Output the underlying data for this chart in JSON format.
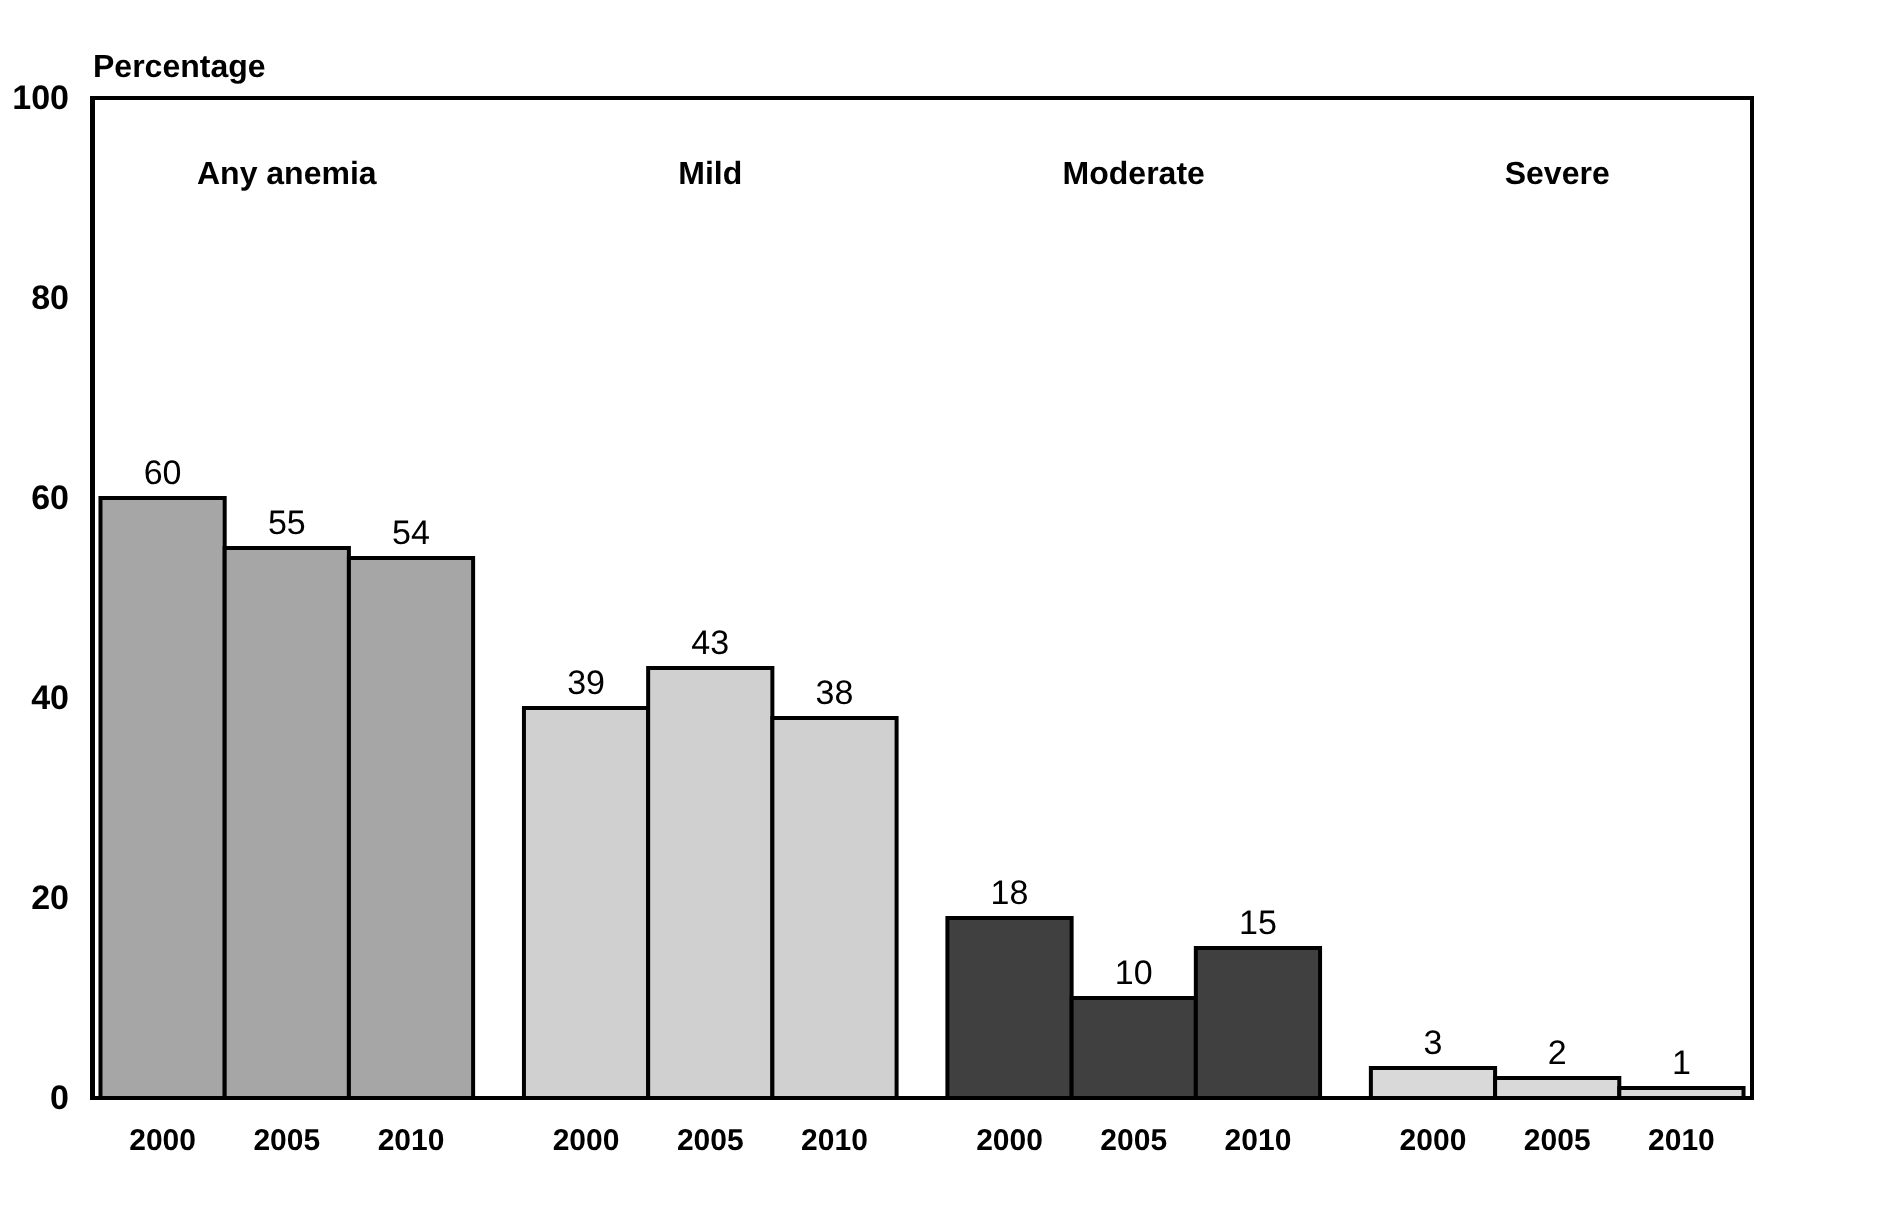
{
  "chart_data": {
    "type": "bar",
    "ylabel": "Percentage",
    "categories": [
      "Any anemia",
      "Mild",
      "Moderate",
      "Severe"
    ],
    "series": [
      {
        "name": "2000",
        "colors": [
          "#a6a6a6",
          "#d0d0d0",
          "#404040",
          "#d9d9d9"
        ],
        "values": [
          60,
          39,
          18,
          3
        ]
      },
      {
        "name": "2005",
        "colors": [
          "#a6a6a6",
          "#d0d0d0",
          "#404040",
          "#d9d9d9"
        ],
        "values": [
          55,
          43,
          10,
          2
        ]
      },
      {
        "name": "2010",
        "colors": [
          "#a6a6a6",
          "#d0d0d0",
          "#404040",
          "#d9d9d9"
        ],
        "values": [
          54,
          38,
          15,
          1
        ]
      }
    ],
    "ylim": [
      0,
      100
    ],
    "yticks": [
      0,
      20,
      40,
      60,
      80,
      100
    ],
    "grid": false,
    "data_labels": true
  }
}
